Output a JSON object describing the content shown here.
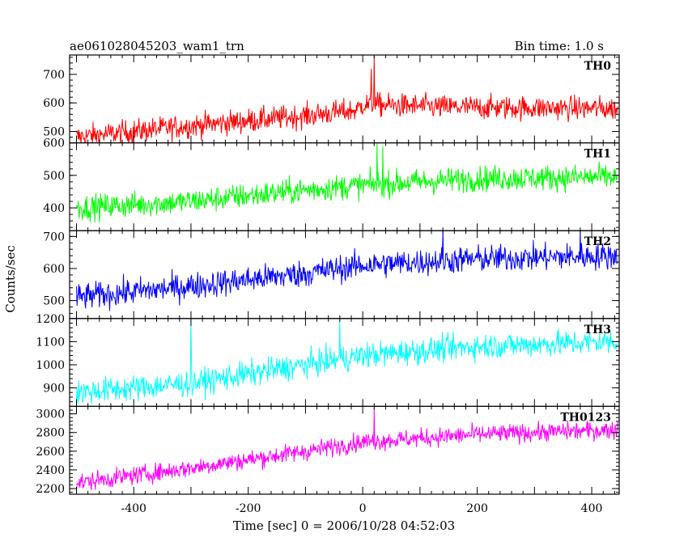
{
  "header": {
    "title": "ae061028045203_wam1_trn",
    "bin_time": "Bin time: 1.0 s"
  },
  "chart_data": {
    "type": "line",
    "title": "ae061028045203_wam1_trn",
    "xlabel": "Time [sec] 0 = 2006/10/28 04:52:03",
    "ylabel": "Counts/sec",
    "xlim": [
      -512,
      448
    ],
    "x_ticks": [
      -400,
      -200,
      0,
      200,
      400
    ],
    "x_range": [
      -500,
      445
    ],
    "grid": false,
    "panels": [
      {
        "name": "TH0",
        "color": "#ff0000",
        "ylim": [
          460,
          768
        ],
        "y_ticks": [
          500,
          600,
          700
        ],
        "trend": [
          [
            -500,
            480
          ],
          [
            -300,
            520
          ],
          [
            -100,
            555
          ],
          [
            -10,
            575
          ],
          [
            0,
            595
          ],
          [
            150,
            585
          ],
          [
            445,
            580
          ]
        ],
        "noise": 30,
        "spikes": [
          [
            20,
            765
          ],
          [
            15,
            720
          ]
        ]
      },
      {
        "name": "TH1",
        "color": "#00ff00",
        "ylim": [
          330,
          600
        ],
        "y_ticks": [
          400,
          500,
          600
        ],
        "trend": [
          [
            -500,
            400
          ],
          [
            -300,
            420
          ],
          [
            -100,
            455
          ],
          [
            0,
            470
          ],
          [
            200,
            490
          ],
          [
            445,
            495
          ]
        ],
        "noise": 28,
        "spikes": [
          [
            25,
            600
          ],
          [
            35,
            590
          ]
        ]
      },
      {
        "name": "TH2",
        "color": "#0000ff",
        "ylim": [
          444,
          718
        ],
        "y_ticks": [
          500,
          600,
          700
        ],
        "trend": [
          [
            -500,
            510
          ],
          [
            -300,
            545
          ],
          [
            -100,
            585
          ],
          [
            0,
            610
          ],
          [
            200,
            630
          ],
          [
            445,
            640
          ]
        ],
        "noise": 30,
        "spikes": [
          [
            140,
            718
          ],
          [
            380,
            718
          ]
        ]
      },
      {
        "name": "TH3",
        "color": "#00ffff",
        "ylim": [
          820,
          1200
        ],
        "y_ticks": [
          900,
          1000,
          1100,
          1200
        ],
        "trend": [
          [
            -500,
            880
          ],
          [
            -300,
            920
          ],
          [
            -100,
            1000
          ],
          [
            0,
            1040
          ],
          [
            200,
            1080
          ],
          [
            445,
            1100
          ]
        ],
        "noise": 40,
        "spikes": [
          [
            -40,
            1200
          ],
          [
            -300,
            1200
          ]
        ]
      },
      {
        "name": "TH0123",
        "color": "#ff00ff",
        "ylim": [
          2140,
          3080
        ],
        "y_ticks": [
          2200,
          2400,
          2600,
          2800,
          3000
        ],
        "trend": [
          [
            -500,
            2260
          ],
          [
            -300,
            2420
          ],
          [
            -100,
            2600
          ],
          [
            0,
            2700
          ],
          [
            200,
            2780
          ],
          [
            445,
            2830
          ]
        ],
        "noise": 70,
        "spikes": [
          [
            20,
            3060
          ]
        ]
      }
    ]
  }
}
